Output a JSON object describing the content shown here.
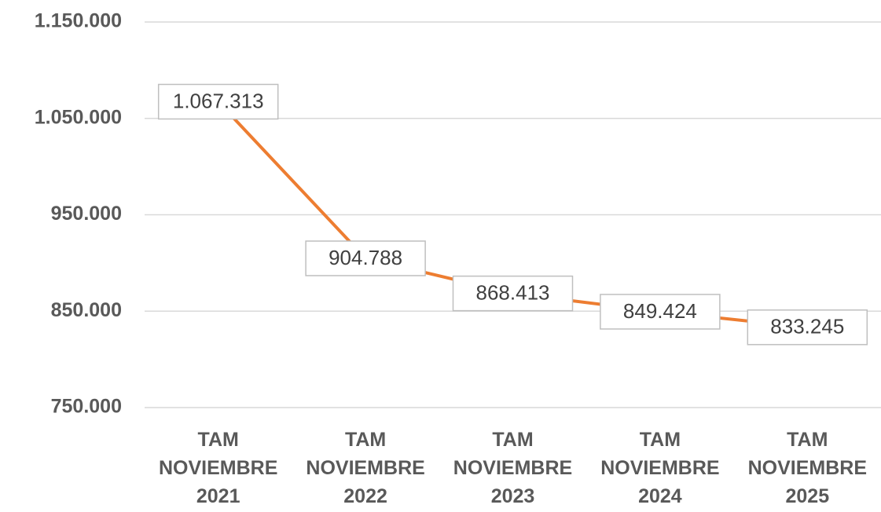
{
  "chart_data": {
    "type": "line",
    "categories": [
      "TAM NOVIEMBRE 2021",
      "TAM NOVIEMBRE 2022",
      "TAM NOVIEMBRE 2023",
      "TAM NOVIEMBRE 2024",
      "TAM NOVIEMBRE 2025"
    ],
    "series": [
      {
        "name": null,
        "color": "#ed7d31",
        "values": [
          1067313,
          904788,
          868413,
          849424,
          833245
        ],
        "value_labels": [
          "1.067.313",
          "904.788",
          "868.413",
          "849.424",
          "833.245"
        ]
      }
    ],
    "ylim": [
      750000,
      1150000
    ],
    "yticks": [
      {
        "value": 750000,
        "label": "750.000"
      },
      {
        "value": 850000,
        "label": "850.000"
      },
      {
        "value": 950000,
        "label": "950.000"
      },
      {
        "value": 1050000,
        "label": "1.050.000"
      },
      {
        "value": 1150000,
        "label": "1.150.000"
      }
    ],
    "grid": true
  }
}
